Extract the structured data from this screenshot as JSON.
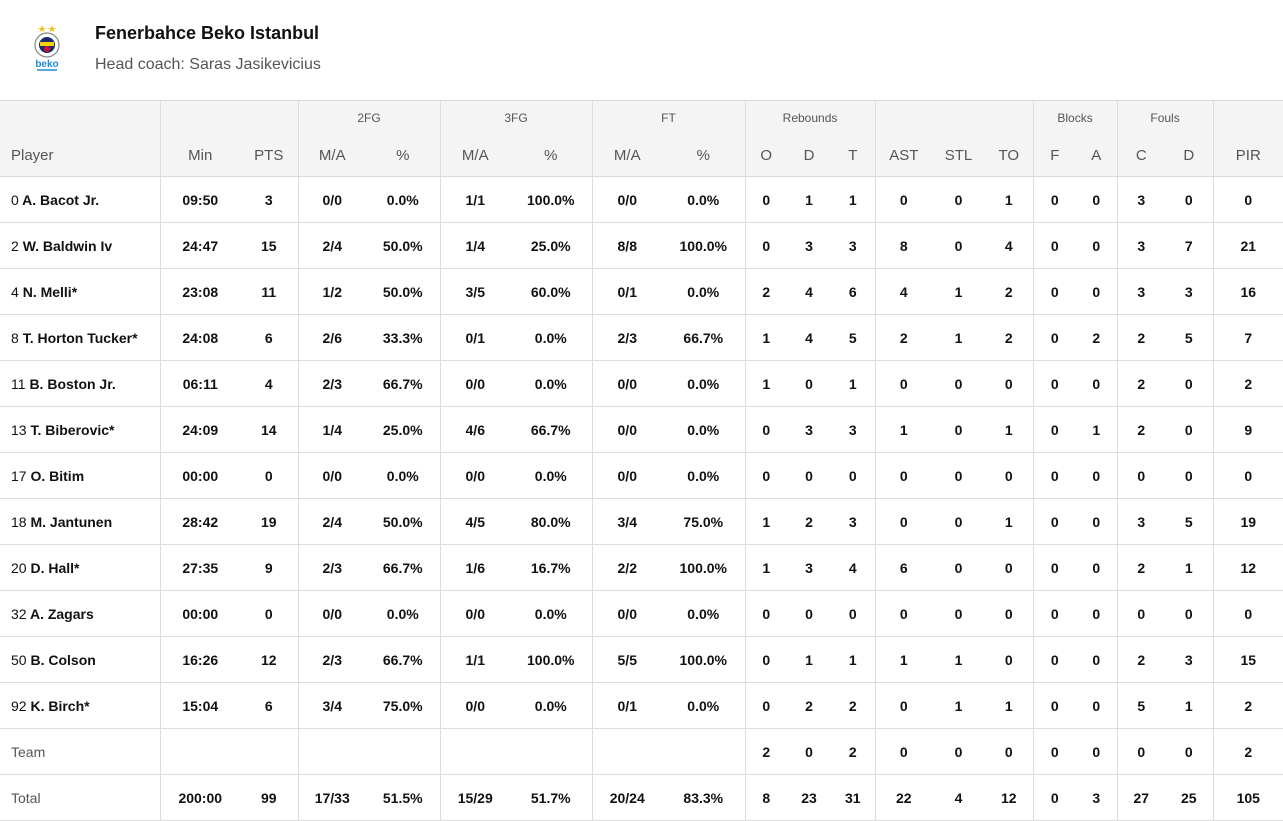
{
  "team": {
    "name": "Fenerbahce Beko Istanbul",
    "coach": "Head coach: Saras Jasikevicius",
    "logo_text": "beko",
    "colors": {
      "navy": "#1b2a6b",
      "yellow": "#f5d20a",
      "red": "#c8102e",
      "beko_blue": "#1e8bd8",
      "star": "#f3c01a"
    }
  },
  "groups": [
    "",
    "",
    "2FG",
    "3FG",
    "FT",
    "Rebounds",
    "",
    "Blocks",
    "Fouls",
    ""
  ],
  "columns": [
    "Player",
    "Min",
    "PTS",
    "M/A",
    "%",
    "M/A",
    "%",
    "M/A",
    "%",
    "O",
    "D",
    "T",
    "AST",
    "STL",
    "TO",
    "F",
    "A",
    "C",
    "D",
    "PIR"
  ],
  "players": [
    {
      "num": "0",
      "name": "A. Bacot Jr.",
      "stats": [
        "09:50",
        "3",
        "0/0",
        "0.0%",
        "1/1",
        "100.0%",
        "0/0",
        "0.0%",
        "0",
        "1",
        "1",
        "0",
        "0",
        "1",
        "0",
        "0",
        "3",
        "0",
        "0"
      ]
    },
    {
      "num": "2",
      "name": "W. Baldwin Iv",
      "stats": [
        "24:47",
        "15",
        "2/4",
        "50.0%",
        "1/4",
        "25.0%",
        "8/8",
        "100.0%",
        "0",
        "3",
        "3",
        "8",
        "0",
        "4",
        "0",
        "0",
        "3",
        "7",
        "21"
      ]
    },
    {
      "num": "4",
      "name": "N. Melli*",
      "stats": [
        "23:08",
        "11",
        "1/2",
        "50.0%",
        "3/5",
        "60.0%",
        "0/1",
        "0.0%",
        "2",
        "4",
        "6",
        "4",
        "1",
        "2",
        "0",
        "0",
        "3",
        "3",
        "16"
      ]
    },
    {
      "num": "8",
      "name": "T. Horton Tucker*",
      "stats": [
        "24:08",
        "6",
        "2/6",
        "33.3%",
        "0/1",
        "0.0%",
        "2/3",
        "66.7%",
        "1",
        "4",
        "5",
        "2",
        "1",
        "2",
        "0",
        "2",
        "2",
        "5",
        "7"
      ]
    },
    {
      "num": "11",
      "name": "B. Boston Jr.",
      "stats": [
        "06:11",
        "4",
        "2/3",
        "66.7%",
        "0/0",
        "0.0%",
        "0/0",
        "0.0%",
        "1",
        "0",
        "1",
        "0",
        "0",
        "0",
        "0",
        "0",
        "2",
        "0",
        "2"
      ]
    },
    {
      "num": "13",
      "name": "T. Biberovic*",
      "stats": [
        "24:09",
        "14",
        "1/4",
        "25.0%",
        "4/6",
        "66.7%",
        "0/0",
        "0.0%",
        "0",
        "3",
        "3",
        "1",
        "0",
        "1",
        "0",
        "1",
        "2",
        "0",
        "9"
      ]
    },
    {
      "num": "17",
      "name": "O. Bitim",
      "stats": [
        "00:00",
        "0",
        "0/0",
        "0.0%",
        "0/0",
        "0.0%",
        "0/0",
        "0.0%",
        "0",
        "0",
        "0",
        "0",
        "0",
        "0",
        "0",
        "0",
        "0",
        "0",
        "0"
      ]
    },
    {
      "num": "18",
      "name": "M. Jantunen",
      "stats": [
        "28:42",
        "19",
        "2/4",
        "50.0%",
        "4/5",
        "80.0%",
        "3/4",
        "75.0%",
        "1",
        "2",
        "3",
        "0",
        "0",
        "1",
        "0",
        "0",
        "3",
        "5",
        "19"
      ]
    },
    {
      "num": "20",
      "name": "D. Hall*",
      "stats": [
        "27:35",
        "9",
        "2/3",
        "66.7%",
        "1/6",
        "16.7%",
        "2/2",
        "100.0%",
        "1",
        "3",
        "4",
        "6",
        "0",
        "0",
        "0",
        "0",
        "2",
        "1",
        "12"
      ]
    },
    {
      "num": "32",
      "name": "A. Zagars",
      "stats": [
        "00:00",
        "0",
        "0/0",
        "0.0%",
        "0/0",
        "0.0%",
        "0/0",
        "0.0%",
        "0",
        "0",
        "0",
        "0",
        "0",
        "0",
        "0",
        "0",
        "0",
        "0",
        "0"
      ]
    },
    {
      "num": "50",
      "name": "B. Colson",
      "stats": [
        "16:26",
        "12",
        "2/3",
        "66.7%",
        "1/1",
        "100.0%",
        "5/5",
        "100.0%",
        "0",
        "1",
        "1",
        "1",
        "1",
        "0",
        "0",
        "0",
        "2",
        "3",
        "15"
      ]
    },
    {
      "num": "92",
      "name": "K. Birch*",
      "stats": [
        "15:04",
        "6",
        "3/4",
        "75.0%",
        "0/0",
        "0.0%",
        "0/1",
        "0.0%",
        "0",
        "2",
        "2",
        "0",
        "1",
        "1",
        "0",
        "0",
        "5",
        "1",
        "2"
      ]
    }
  ],
  "team_row": {
    "label": "Team",
    "stats": [
      "",
      "",
      "",
      "",
      "",
      "",
      "",
      "",
      "2",
      "0",
      "2",
      "0",
      "0",
      "0",
      "0",
      "0",
      "0",
      "0",
      "2"
    ]
  },
  "total_row": {
    "label": "Total",
    "stats": [
      "200:00",
      "99",
      "17/33",
      "51.5%",
      "15/29",
      "51.7%",
      "20/24",
      "83.3%",
      "8",
      "23",
      "31",
      "22",
      "4",
      "12",
      "0",
      "3",
      "27",
      "25",
      "105"
    ]
  }
}
